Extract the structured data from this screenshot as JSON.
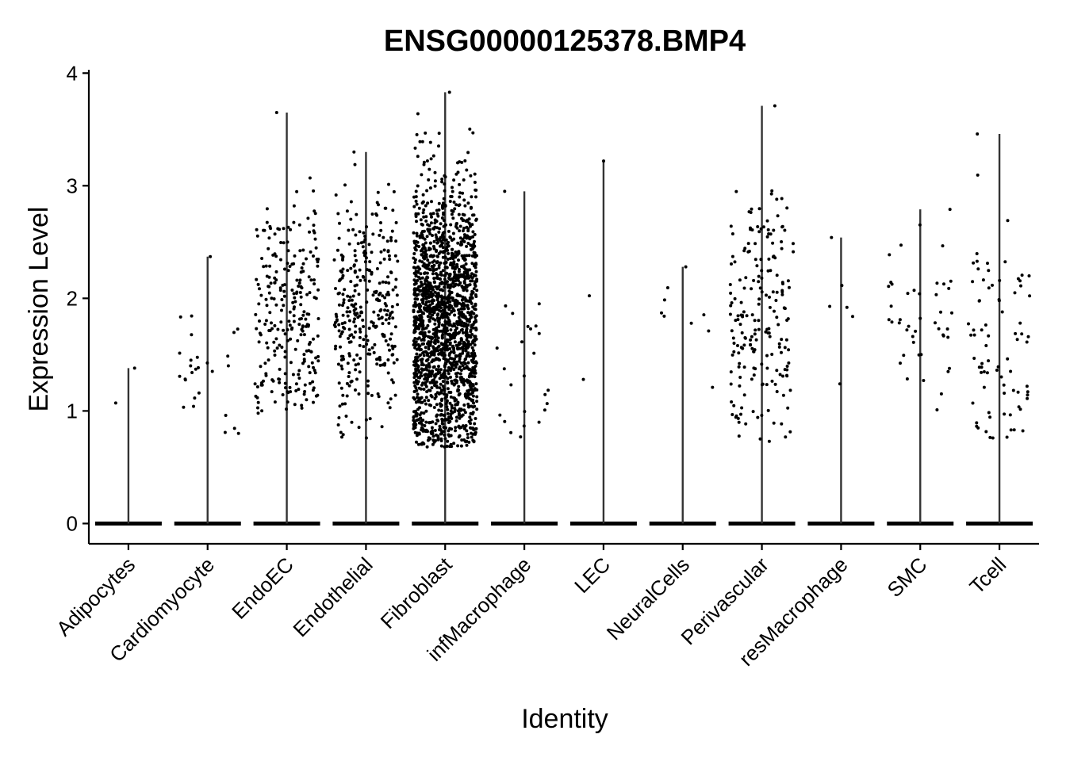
{
  "chart_data": {
    "type": "violin",
    "title": "ENSG00000125378.BMP4",
    "xlabel": "Identity",
    "ylabel": "Expression Level",
    "ylim": [
      -0.18,
      4.03
    ],
    "yticks": [
      0,
      1,
      2,
      3,
      4
    ],
    "grid": false,
    "legend": "none",
    "point_color": "#000000",
    "categories": [
      "Adipocytes",
      "Cardiomyocyte",
      "EndoEC",
      "Endothelial",
      "Fibroblast",
      "infMacrophage",
      "LEC",
      "NeuralCells",
      "Perivascular",
      "resMacrophage",
      "SMC",
      "Tcell"
    ],
    "groups": [
      {
        "name": "Adipocytes",
        "max": 1.38,
        "n_nonzero": 2,
        "nonzero_range": [
          1.07,
          1.38
        ],
        "nonzero_center": 1.2
      },
      {
        "name": "Cardiomyocyte",
        "max": 2.37,
        "n_nonzero": 28,
        "nonzero_range": [
          0.8,
          2.37
        ],
        "nonzero_center": 1.3
      },
      {
        "name": "EndoEC",
        "max": 3.65,
        "n_nonzero": 260,
        "nonzero_range": [
          0.98,
          3.65
        ],
        "nonzero_center": 1.9
      },
      {
        "name": "Endothelial",
        "max": 3.3,
        "n_nonzero": 330,
        "nonzero_range": [
          0.76,
          3.3
        ],
        "nonzero_center": 1.9
      },
      {
        "name": "Fibroblast",
        "max": 3.83,
        "n_nonzero": 1800,
        "nonzero_range": [
          0.68,
          3.83
        ],
        "nonzero_center": 1.8
      },
      {
        "name": "infMacrophage",
        "max": 2.95,
        "n_nonzero": 25,
        "nonzero_range": [
          0.77,
          2.95
        ],
        "nonzero_center": 1.5
      },
      {
        "name": "LEC",
        "max": 3.22,
        "n_nonzero": 3,
        "nonzero_range": [
          1.28,
          3.22
        ],
        "nonzero_center": 1.5
      },
      {
        "name": "NeuralCells",
        "max": 2.28,
        "n_nonzero": 9,
        "nonzero_range": [
          1.21,
          2.28
        ],
        "nonzero_center": 1.7
      },
      {
        "name": "Perivascular",
        "max": 3.71,
        "n_nonzero": 200,
        "nonzero_range": [
          0.73,
          3.71
        ],
        "nonzero_center": 1.85
      },
      {
        "name": "resMacrophage",
        "max": 2.54,
        "n_nonzero": 6,
        "nonzero_range": [
          1.24,
          2.54
        ],
        "nonzero_center": 1.9
      },
      {
        "name": "SMC",
        "max": 2.79,
        "n_nonzero": 45,
        "nonzero_range": [
          1.01,
          2.79
        ],
        "nonzero_center": 1.8
      },
      {
        "name": "Tcell",
        "max": 3.46,
        "n_nonzero": 80,
        "nonzero_range": [
          0.76,
          3.46
        ],
        "nonzero_center": 1.55
      }
    ]
  }
}
